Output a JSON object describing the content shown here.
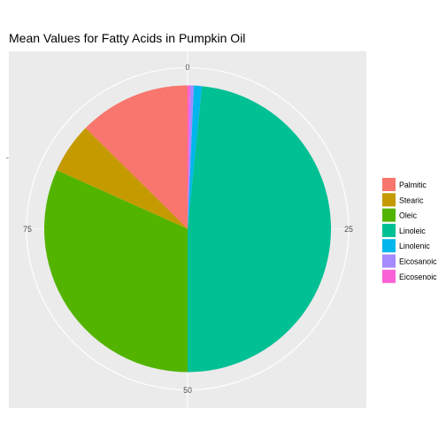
{
  "chart_data": {
    "type": "pie",
    "title": "Mean Values for Fatty Acids in Pumpkin Oil",
    "ylabel": "-",
    "theta_ticks": [
      "0",
      "25",
      "50",
      "75"
    ],
    "theta_range": [
      0,
      100
    ],
    "grid": true,
    "legend_position": "right",
    "categories": [
      "Palmitic",
      "Stearic",
      "Oleic",
      "Linoleic",
      "Linolenic",
      "Eicosanoic",
      "Eicosenoic"
    ],
    "values": [
      12.6,
      5.7,
      31.7,
      48.4,
      0.9,
      0.4,
      0.3
    ],
    "colors": [
      "#F8766D",
      "#C49A00",
      "#53B400",
      "#00C094",
      "#00B6EB",
      "#A58AFF",
      "#FB61D7"
    ],
    "draw_order": [
      "Eicosenoic",
      "Eicosanoic",
      "Linolenic",
      "Linoleic",
      "Oleic",
      "Stearic",
      "Palmitic"
    ]
  }
}
